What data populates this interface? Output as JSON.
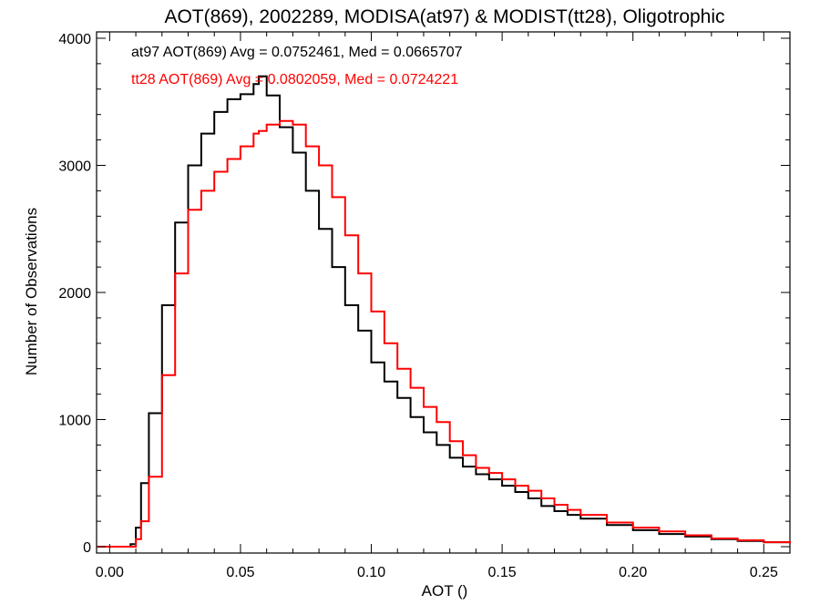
{
  "chart_data": {
    "type": "line",
    "title": "AOT(869), 2002289, MODISA(at97) & MODIST(tt28), Oligotrophic",
    "xlabel": "AOT ()",
    "ylabel": "Number of Observations",
    "xlim": [
      -0.005,
      0.26
    ],
    "ylim": [
      -50,
      4050
    ],
    "x_ticks": [
      0.0,
      0.05,
      0.1,
      0.15,
      0.2,
      0.25
    ],
    "x_tick_labels": [
      "0.00",
      "0.05",
      "0.10",
      "0.15",
      "0.20",
      "0.25"
    ],
    "y_ticks": [
      0,
      1000,
      2000,
      3000,
      4000
    ],
    "y_tick_labels": [
      "0",
      "1000",
      "2000",
      "3000",
      "4000"
    ],
    "grid": false,
    "step": true,
    "x": [
      -0.005,
      0.0,
      0.005,
      0.008,
      0.01,
      0.012,
      0.015,
      0.02,
      0.025,
      0.03,
      0.035,
      0.04,
      0.045,
      0.05,
      0.055,
      0.057,
      0.06,
      0.065,
      0.07,
      0.075,
      0.08,
      0.085,
      0.09,
      0.095,
      0.1,
      0.105,
      0.11,
      0.115,
      0.12,
      0.125,
      0.13,
      0.135,
      0.14,
      0.145,
      0.15,
      0.155,
      0.16,
      0.165,
      0.17,
      0.175,
      0.18,
      0.19,
      0.2,
      0.21,
      0.22,
      0.23,
      0.24,
      0.25,
      0.26
    ],
    "series": [
      {
        "name": "at97",
        "color": "#000000",
        "values": [
          0,
          0,
          0,
          20,
          150,
          500,
          1050,
          1900,
          2550,
          3000,
          3250,
          3420,
          3520,
          3560,
          3640,
          3700,
          3550,
          3300,
          3100,
          2800,
          2500,
          2200,
          1900,
          1700,
          1450,
          1300,
          1170,
          1020,
          900,
          800,
          700,
          630,
          570,
          530,
          480,
          430,
          380,
          320,
          280,
          250,
          220,
          170,
          130,
          100,
          80,
          60,
          45,
          35,
          25
        ]
      },
      {
        "name": "tt28",
        "color": "#ff0000",
        "values": [
          0,
          0,
          0,
          0,
          60,
          200,
          550,
          1350,
          2150,
          2650,
          2800,
          2950,
          3050,
          3150,
          3250,
          3270,
          3320,
          3350,
          3320,
          3150,
          3000,
          2750,
          2450,
          2150,
          1850,
          1600,
          1400,
          1250,
          1100,
          980,
          830,
          720,
          620,
          580,
          530,
          480,
          440,
          380,
          330,
          290,
          250,
          190,
          150,
          120,
          90,
          65,
          50,
          35,
          25
        ]
      }
    ],
    "annotations": [
      {
        "text": "at97 AOT(869) Avg = 0.0752461, Med = 0.0665707",
        "color": "#000000"
      },
      {
        "text": "tt28 AOT(869) Avg = 0.0802059, Med = 0.0724221",
        "color": "#ff0000"
      }
    ]
  }
}
